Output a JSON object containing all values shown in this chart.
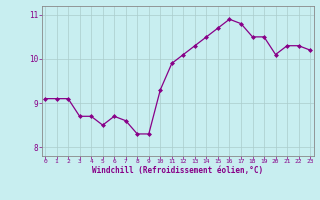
{
  "x": [
    0,
    1,
    2,
    3,
    4,
    5,
    6,
    7,
    8,
    9,
    10,
    11,
    12,
    13,
    14,
    15,
    16,
    17,
    18,
    19,
    20,
    21,
    22,
    23
  ],
  "y": [
    9.1,
    9.1,
    9.1,
    8.7,
    8.7,
    8.5,
    8.7,
    8.6,
    8.3,
    8.3,
    9.3,
    9.9,
    10.1,
    10.3,
    10.5,
    10.7,
    10.9,
    10.8,
    10.5,
    10.5,
    10.1,
    10.3,
    10.3,
    10.2
  ],
  "line_color": "#880088",
  "marker": "D",
  "marker_size": 2.0,
  "bg_color": "#c8eef0",
  "grid_color": "#aacccc",
  "xlabel": "Windchill (Refroidissement éolien,°C)",
  "xlabel_color": "#880088",
  "tick_color": "#880088",
  "ylim": [
    7.8,
    11.2
  ],
  "yticks": [
    8,
    9,
    10,
    11
  ],
  "xticks": [
    0,
    1,
    2,
    3,
    4,
    5,
    6,
    7,
    8,
    9,
    10,
    11,
    12,
    13,
    14,
    15,
    16,
    17,
    18,
    19,
    20,
    21,
    22,
    23
  ],
  "xlim": [
    -0.3,
    23.3
  ],
  "spine_color": "#888888"
}
